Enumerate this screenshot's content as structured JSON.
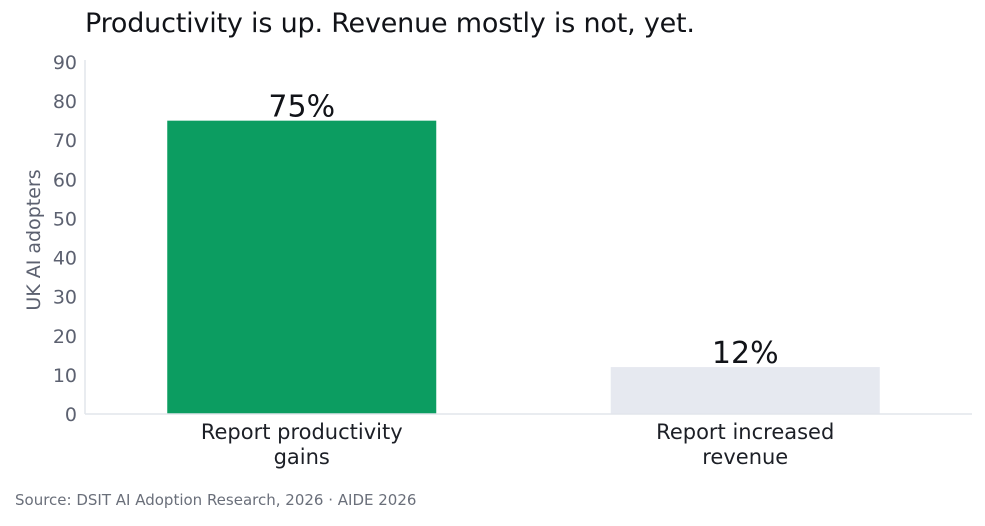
{
  "chart_data": {
    "type": "bar",
    "title": "Productivity is up. Revenue mostly is not, yet.",
    "xlabel": "",
    "ylabel": "UK AI adopters",
    "categories": [
      [
        "Report productivity",
        "gains"
      ],
      [
        "Report increased",
        "revenue"
      ]
    ],
    "values": [
      75,
      12
    ],
    "data_labels": [
      "75%",
      "12%"
    ],
    "ylim": [
      0,
      90
    ],
    "yticks": [
      0,
      10,
      20,
      30,
      40,
      50,
      60,
      70,
      80,
      90
    ],
    "grid": false,
    "legend": "none",
    "colors": [
      "#0c9d61",
      "#e6e9f0"
    ],
    "axis_color": "#e2e5ec",
    "tick_label_color": "#5c6170"
  },
  "footer": {
    "source": "Source: DSIT AI Adoption Research, 2026  ·  AIDE 2026"
  }
}
